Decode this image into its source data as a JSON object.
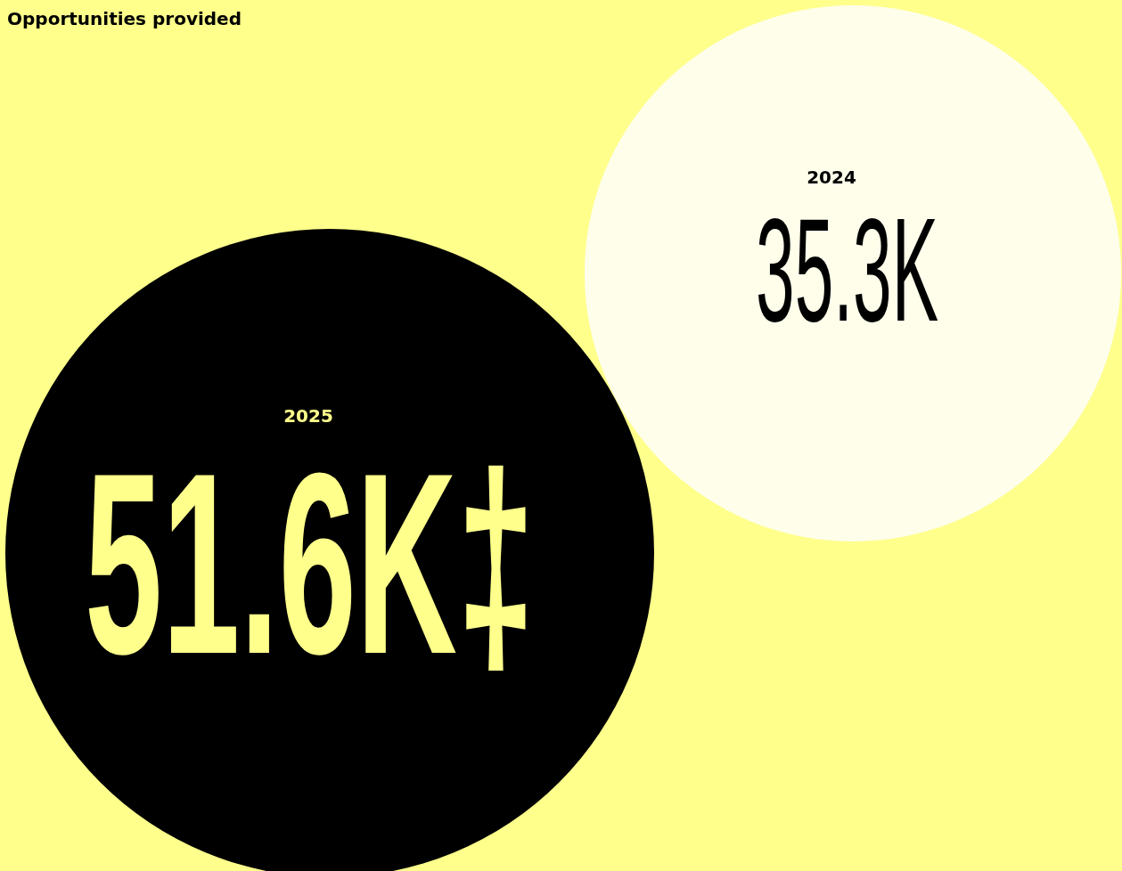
{
  "chart_data": {
    "type": "other",
    "title": "Opportunities provided",
    "categories": [
      "2025",
      "2024"
    ],
    "values": [
      51600,
      35300
    ],
    "value_labels": [
      "51.6K‡",
      "35.3K"
    ],
    "colors": [
      "#000000",
      "#fefeeb"
    ]
  }
}
